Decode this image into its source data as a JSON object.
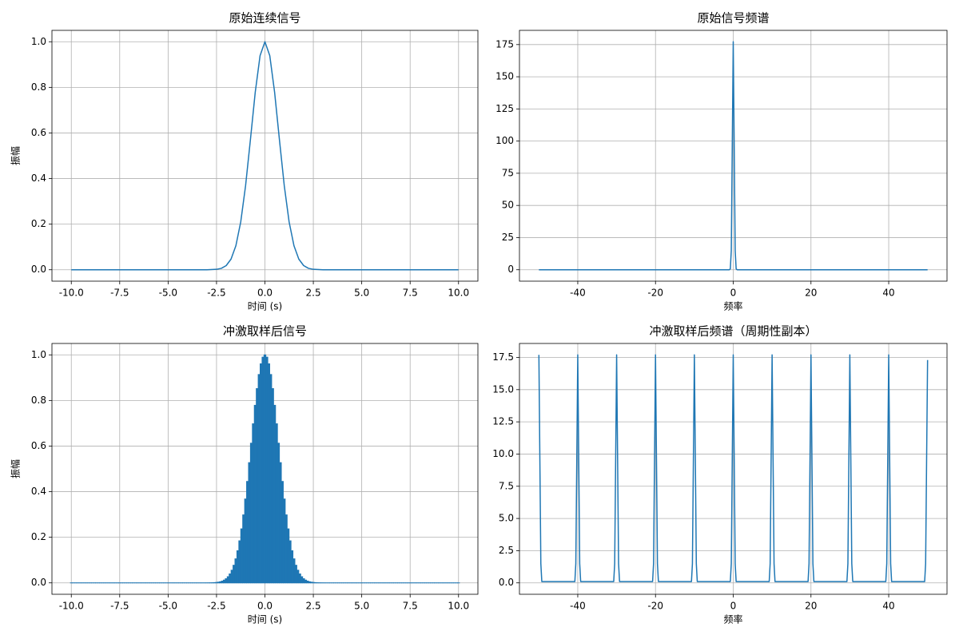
{
  "chart_data": [
    {
      "type": "line",
      "title": "原始连续信号",
      "xlabel": "时间 (s)",
      "ylabel": "振幅",
      "color": "#1f77b4",
      "grid": true,
      "x": [
        -10,
        -3,
        -2.5,
        -2.25,
        -2,
        -1.75,
        -1.5,
        -1.25,
        -1,
        -0.75,
        -0.5,
        -0.25,
        0,
        0.25,
        0.5,
        0.75,
        1,
        1.25,
        1.5,
        1.75,
        2,
        2.25,
        2.5,
        3,
        10
      ],
      "values": [
        0,
        0.0001,
        0.0019,
        0.0063,
        0.0183,
        0.0468,
        0.1054,
        0.2096,
        0.3679,
        0.5698,
        0.7788,
        0.9394,
        1,
        0.9394,
        0.7788,
        0.5698,
        0.3679,
        0.2096,
        0.1054,
        0.0468,
        0.0183,
        0.0063,
        0.0019,
        0.0001,
        0
      ],
      "xlim": [
        -11,
        11
      ],
      "xticks": [
        {
          "value": -10,
          "label": "-10.0"
        },
        -7.5,
        {
          "value": -5,
          "label": "-5.0"
        },
        -2.5,
        {
          "value": 0,
          "label": "0.0"
        },
        2.5,
        {
          "value": 5,
          "label": "5.0"
        },
        7.5,
        {
          "value": 10,
          "label": "10.0"
        }
      ],
      "ylim": [
        -0.05,
        1.05
      ],
      "yticks": [
        {
          "value": 0,
          "label": "0.0"
        },
        0.2,
        0.4,
        0.6,
        0.8,
        {
          "value": 1,
          "label": "1.0"
        }
      ]
    },
    {
      "type": "line",
      "title": "原始信号频谱",
      "xlabel": "频率",
      "color": "#1f77b4",
      "grid": true,
      "x": [
        -50,
        -1,
        -0.75,
        -0.5,
        -0.25,
        0,
        0.25,
        0.5,
        0.75,
        1,
        50
      ],
      "values": [
        0,
        0,
        0.7,
        15,
        95.6,
        177.2,
        95.6,
        15,
        0.7,
        0,
        0
      ],
      "xlim": [
        -55,
        55
      ],
      "xticks": [
        -40,
        -20,
        0,
        20,
        40
      ],
      "ylim": [
        -8.86,
        186.06
      ],
      "yticks": [
        0,
        25,
        50,
        75,
        100,
        125,
        150,
        175
      ]
    },
    {
      "type": "bar",
      "title": "冲激取样后信号",
      "xlabel": "时间 (s)",
      "ylabel": "振幅",
      "color": "#1f77b4",
      "grid": true,
      "x": [
        -10,
        -9.9,
        -9.8,
        -9.7,
        -9.6,
        -9.5,
        -9.4,
        -9.3,
        -9.2,
        -9.1,
        -9,
        -8.9,
        -8.8,
        -8.7,
        -8.6,
        -8.5,
        -8.4,
        -8.3,
        -8.2,
        -8.1,
        -8,
        -7.9,
        -7.8,
        -7.7,
        -7.6,
        -7.5,
        -7.4,
        -7.3,
        -7.2,
        -7.1,
        -7,
        -6.9,
        -6.8,
        -6.7,
        -6.6,
        -6.5,
        -6.4,
        -6.3,
        -6.2,
        -6.1,
        -6,
        -5.9,
        -5.8,
        -5.7,
        -5.6,
        -5.5,
        -5.4,
        -5.3,
        -5.2,
        -5.1,
        -5,
        -4.9,
        -4.8,
        -4.7,
        -4.6,
        -4.5,
        -4.4,
        -4.3,
        -4.2,
        -4.1,
        -4,
        -3.9,
        -3.8,
        -3.7,
        -3.6,
        -3.5,
        -3.4,
        -3.3,
        -3.2,
        -3.1,
        -3,
        -2.9,
        -2.8,
        -2.7,
        -2.6,
        -2.5,
        -2.4,
        -2.3,
        -2.2,
        -2.1,
        -2,
        -1.9,
        -1.8,
        -1.7,
        -1.6,
        -1.5,
        -1.4,
        -1.3,
        -1.2,
        -1.1,
        -1,
        -0.9,
        -0.8,
        -0.7,
        -0.6,
        -0.5,
        -0.4,
        -0.3,
        -0.2,
        -0.1,
        0,
        0.1,
        0.2,
        0.3,
        0.4,
        0.5,
        0.6,
        0.7,
        0.8,
        0.9,
        1,
        1.1,
        1.2,
        1.3,
        1.4,
        1.5,
        1.6,
        1.7,
        1.8,
        1.9,
        2,
        2.1,
        2.2,
        2.3,
        2.4,
        2.5,
        2.6,
        2.7,
        2.8,
        2.9,
        3,
        3.1,
        3.2,
        3.3,
        3.4,
        3.5,
        3.6,
        3.7,
        3.8,
        3.9,
        4,
        4.1,
        4.2,
        4.3,
        4.4,
        4.5,
        4.6,
        4.7,
        4.8,
        4.9,
        5,
        5.1,
        5.2,
        5.3,
        5.4,
        5.5,
        5.6,
        5.7,
        5.8,
        5.9,
        6,
        6.1,
        6.2,
        6.3,
        6.4,
        6.5,
        6.6,
        6.7,
        6.8,
        6.9,
        7,
        7.1,
        7.2,
        7.3,
        7.4,
        7.5,
        7.6,
        7.7,
        7.8,
        7.9,
        8,
        8.1,
        8.2,
        8.3,
        8.4,
        8.5,
        8.6,
        8.7,
        8.8,
        8.9,
        9,
        9.1,
        9.2,
        9.3,
        9.4,
        9.5,
        9.6,
        9.7,
        9.8,
        9.9,
        10
      ],
      "values": [
        0,
        0,
        0,
        0,
        0,
        0,
        0,
        0,
        0,
        0,
        0,
        0,
        0,
        0,
        0,
        0,
        0,
        0,
        0,
        0,
        0,
        0,
        0,
        0,
        0,
        0,
        0,
        0,
        0,
        0,
        0,
        0,
        0,
        0,
        0,
        0,
        0,
        0,
        0,
        0,
        0,
        0,
        0,
        0,
        0,
        0,
        0,
        0,
        0,
        0,
        0,
        0,
        0,
        0,
        0,
        0,
        0,
        0,
        0,
        0,
        0,
        0,
        0,
        0,
        0,
        0,
        0,
        0,
        0,
        0,
        0.0001,
        0.0002,
        0.0004,
        0.0007,
        0.0012,
        0.0019,
        0.0032,
        0.005,
        0.0079,
        0.0122,
        0.0183,
        0.0271,
        0.0392,
        0.0556,
        0.0773,
        0.1054,
        0.1409,
        0.1845,
        0.2369,
        0.2982,
        0.3679,
        0.4449,
        0.5273,
        0.6126,
        0.6977,
        0.7788,
        0.8521,
        0.9139,
        0.9608,
        0.99,
        1,
        0.99,
        0.9608,
        0.9139,
        0.8521,
        0.7788,
        0.6977,
        0.6126,
        0.5273,
        0.4449,
        0.3679,
        0.2982,
        0.2369,
        0.1845,
        0.1409,
        0.1054,
        0.0773,
        0.0556,
        0.0392,
        0.0271,
        0.0183,
        0.0122,
        0.0079,
        0.005,
        0.0032,
        0.0019,
        0.0012,
        0.0007,
        0.0004,
        0.0002,
        0.0001,
        0,
        0,
        0,
        0,
        0,
        0,
        0,
        0,
        0,
        0,
        0,
        0,
        0,
        0,
        0,
        0,
        0,
        0,
        0,
        0,
        0,
        0,
        0,
        0,
        0,
        0,
        0,
        0,
        0,
        0,
        0,
        0,
        0,
        0,
        0,
        0,
        0,
        0,
        0,
        0,
        0,
        0,
        0,
        0,
        0,
        0,
        0,
        0,
        0,
        0,
        0,
        0,
        0,
        0,
        0,
        0,
        0,
        0,
        0,
        0,
        0,
        0,
        0,
        0,
        0,
        0,
        0,
        0,
        0,
        0
      ],
      "xlim": [
        -11,
        11
      ],
      "xticks": [
        {
          "value": -10,
          "label": "-10.0"
        },
        -7.5,
        {
          "value": -5,
          "label": "-5.0"
        },
        -2.5,
        {
          "value": 0,
          "label": "0.0"
        },
        2.5,
        {
          "value": 5,
          "label": "5.0"
        },
        7.5,
        {
          "value": 10,
          "label": "10.0"
        }
      ],
      "ylim": [
        -0.05,
        1.05
      ],
      "yticks": [
        {
          "value": 0,
          "label": "0.0"
        },
        0.2,
        0.4,
        0.6,
        0.8,
        {
          "value": 1,
          "label": "1.0"
        }
      ]
    },
    {
      "type": "line",
      "title": "冲激取样后频谱（周期性副本）",
      "xlabel": "频率",
      "color": "#1f77b4",
      "grid": true,
      "x": [
        -50,
        -49.75,
        -49.5,
        -49.25,
        -40.75,
        -40.5,
        -40.25,
        -40,
        -39.75,
        -39.5,
        -39.25,
        -30.75,
        -30.5,
        -30.25,
        -30,
        -29.75,
        -29.5,
        -29.25,
        -20.75,
        -20.5,
        -20.25,
        -20,
        -19.75,
        -19.5,
        -19.25,
        -10.75,
        -10.5,
        -10.25,
        -10,
        -9.75,
        -9.5,
        -9.25,
        -0.75,
        -0.5,
        -0.25,
        0,
        0.25,
        0.5,
        0.75,
        9.25,
        9.5,
        9.75,
        10,
        10.25,
        10.5,
        10.75,
        19.25,
        19.5,
        19.75,
        20,
        20.25,
        20.5,
        20.75,
        29.25,
        29.5,
        29.75,
        30,
        30.25,
        30.5,
        30.75,
        39.25,
        39.5,
        39.75,
        40,
        40.25,
        40.5,
        40.75,
        49.25,
        49.5,
        49.75,
        50
      ],
      "values": [
        17.7,
        9.6,
        1.5,
        0.1,
        0.1,
        1.5,
        9.6,
        17.7,
        9.6,
        1.5,
        0.1,
        0.1,
        1.5,
        9.6,
        17.7,
        9.6,
        1.5,
        0.1,
        0.1,
        1.5,
        9.6,
        17.7,
        9.6,
        1.5,
        0.1,
        0.1,
        1.5,
        9.6,
        17.7,
        9.6,
        1.5,
        0.1,
        0.1,
        1.5,
        9.6,
        17.7,
        9.6,
        1.5,
        0.1,
        0.1,
        1.5,
        9.6,
        17.7,
        9.6,
        1.5,
        0.1,
        0.1,
        1.5,
        9.6,
        17.7,
        9.6,
        1.5,
        0.1,
        0.1,
        1.5,
        9.6,
        17.7,
        9.6,
        1.5,
        0.1,
        0.1,
        1.5,
        9.6,
        17.7,
        9.6,
        1.5,
        0.1,
        0.1,
        1.5,
        9.6,
        17.3
      ],
      "xlim": [
        -55,
        55
      ],
      "xticks": [
        -40,
        -20,
        0,
        20,
        40
      ],
      "ylim": [
        -0.885,
        18.585
      ],
      "yticks": [
        {
          "value": 0,
          "label": "0.0"
        },
        2.5,
        {
          "value": 5,
          "label": "5.0"
        },
        7.5,
        {
          "value": 10,
          "label": "10.0"
        },
        12.5,
        {
          "value": 15,
          "label": "15.0"
        },
        17.5
      ]
    }
  ]
}
